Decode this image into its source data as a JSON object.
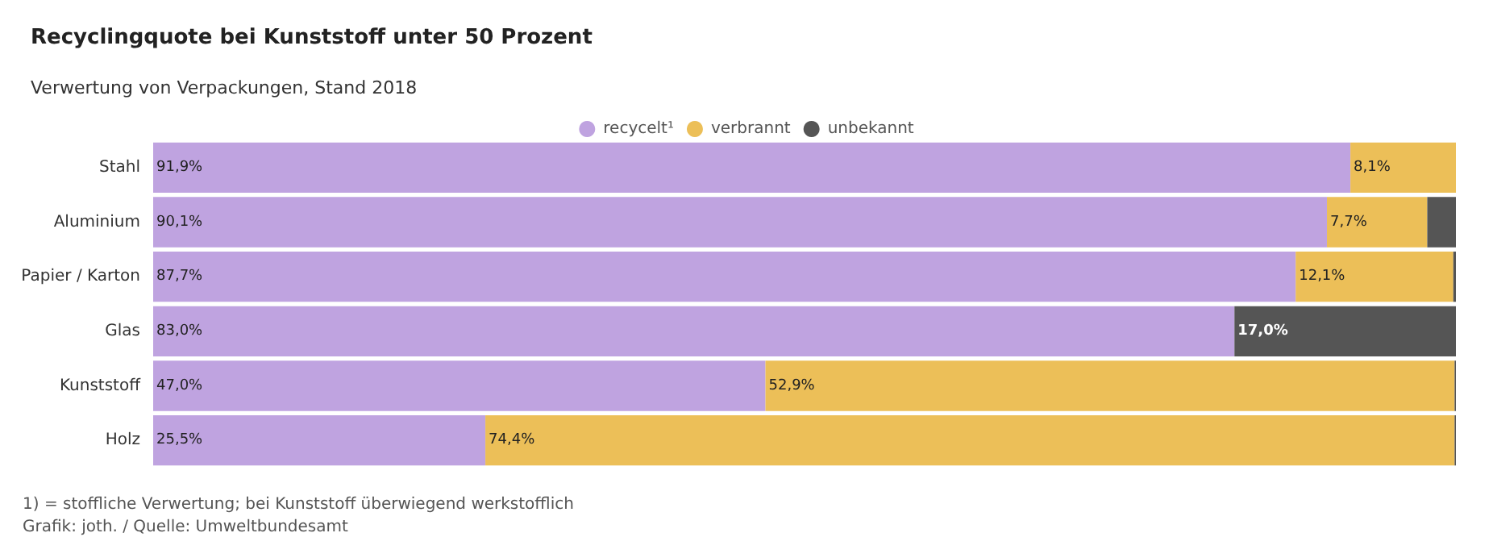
{
  "chart_data": {
    "type": "bar",
    "orientation": "horizontal",
    "stacked": true,
    "title": "Recyclingquote bei Kunststoff unter 50 Prozent",
    "subtitle": "Verwertung von Verpackungen, Stand 2018",
    "categories": [
      "Stahl",
      "Aluminium",
      "Papier / Karton",
      "Glas",
      "Kunststoff",
      "Holz"
    ],
    "series": [
      {
        "name": "recycelt¹",
        "color": "#bfa3e0",
        "values": [
          91.9,
          90.1,
          87.7,
          83.0,
          47.0,
          25.5
        ],
        "value_labels": [
          "91,9%",
          "90,1%",
          "87,7%",
          "83,0%",
          "47,0%",
          "25,5%"
        ]
      },
      {
        "name": "verbrannt",
        "color": "#ecbf58",
        "values": [
          8.1,
          7.7,
          12.1,
          0,
          52.9,
          74.4
        ],
        "value_labels": [
          "8,1%",
          "7,7%",
          "12,1%",
          null,
          "52,9%",
          "74,4%"
        ]
      },
      {
        "name": "unbekannt",
        "color": "#555555",
        "values": [
          0,
          2.2,
          0.2,
          17.0,
          0.1,
          0.1
        ],
        "value_labels": [
          null,
          null,
          null,
          "17,0%",
          null,
          null
        ]
      }
    ],
    "xlim": [
      0,
      100
    ],
    "tick_labels": "y",
    "legend": "top",
    "annotations": [
      "1) = stoffliche Verwertung; bei Kunststoff überwiegend werkstofflich",
      "Grafik: joth. / Quelle: Umweltbundesamt"
    ]
  }
}
